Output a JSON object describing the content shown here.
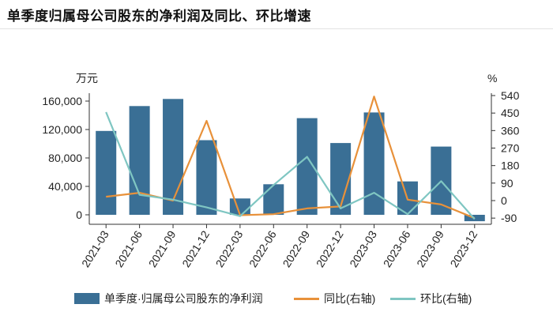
{
  "title": "单季度归属母公司股东的净利润及同比、环比增速",
  "legend": {
    "bar": "单季度·归属母公司股东的净利润",
    "yoy": "同比(右轴)",
    "qoq": "环比(右轴)"
  },
  "colors": {
    "bar": "#3a6f95",
    "yoy": "#e8913a",
    "qoq": "#7fc6c2",
    "axis": "#333333"
  },
  "chart_data": {
    "type": "bar",
    "categories": [
      "2021-03",
      "2021-06",
      "2021-09",
      "2021-12",
      "2022-03",
      "2022-06",
      "2022-09",
      "2022-12",
      "2023-03",
      "2023-06",
      "2023-09",
      "2023-12"
    ],
    "series": [
      {
        "name": "单季度·归属母公司股东的净利润",
        "type": "bar",
        "axis": "left",
        "values": [
          118000,
          153000,
          163000,
          105000,
          23000,
          43000,
          136000,
          101000,
          144000,
          47000,
          96000,
          -9000
        ]
      },
      {
        "name": "同比(右轴)",
        "type": "line",
        "axis": "right",
        "values": [
          20,
          40,
          0,
          410,
          -75,
          -70,
          -40,
          -30,
          535,
          5,
          -20,
          -90
        ]
      },
      {
        "name": "环比(右轴)",
        "type": "line",
        "axis": "right",
        "values": [
          455,
          30,
          5,
          -35,
          -80,
          80,
          225,
          -40,
          40,
          -70,
          100,
          -95
        ]
      }
    ],
    "y_left": {
      "unit": "万元",
      "ylim": [
        -10000,
        162000
      ],
      "ticks": [
        160000,
        120000,
        80000,
        40000,
        0
      ],
      "tick_labels": [
        "160,000",
        "120,000",
        "80,000",
        "40,000",
        "0"
      ]
    },
    "y_right": {
      "unit": "%",
      "ylim": [
        -110,
        540
      ],
      "ticks": [
        540,
        450,
        360,
        270,
        180,
        90,
        0,
        -90
      ],
      "tick_labels": [
        "540",
        "450",
        "360",
        "270",
        "180",
        "90",
        "0",
        "-90"
      ]
    },
    "grid": false,
    "legend_position": "bottom"
  }
}
